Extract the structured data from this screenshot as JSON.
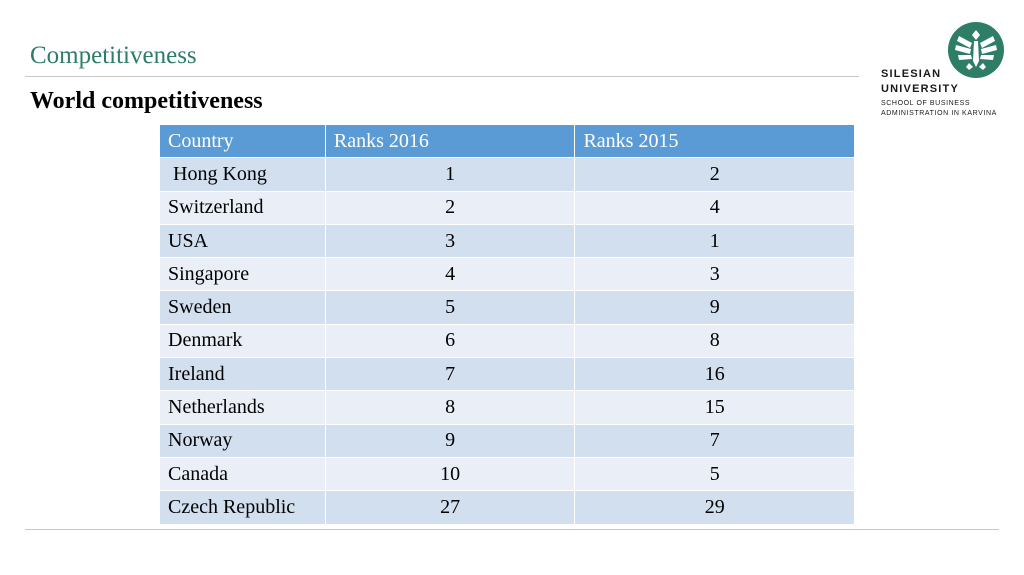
{
  "header": {
    "title": "Competitiveness",
    "subtitle": "World competitiveness"
  },
  "logo": {
    "line1": "SILESIAN",
    "line2": "UNIVERSITY",
    "line3": "SCHOOL OF BUSINESS",
    "line4": "ADMINISTRATION IN KARVINA",
    "color": "#2e7d66"
  },
  "table": {
    "headers": [
      "Country",
      "Ranks 2016",
      "Ranks 2015"
    ],
    "rows": [
      [
        " Hong Kong",
        "1",
        "2"
      ],
      [
        "Switzerland",
        "2",
        "4"
      ],
      [
        "USA",
        "3",
        "1"
      ],
      [
        "Singapore",
        "4",
        "3"
      ],
      [
        "Sweden",
        "5",
        "9"
      ],
      [
        "Denmark",
        "6",
        "8"
      ],
      [
        "Ireland",
        "7",
        "16"
      ],
      [
        "Netherlands",
        "8",
        "15"
      ],
      [
        "Norway",
        "9",
        "7"
      ],
      [
        "Canada",
        "10",
        "5"
      ],
      [
        "Czech Republic",
        "27",
        "29"
      ]
    ]
  },
  "colors": {
    "header_bg": "#5b9bd5",
    "row_dark": "#d2dfee",
    "row_light": "#eaeff7",
    "title": "#2e7d66"
  }
}
